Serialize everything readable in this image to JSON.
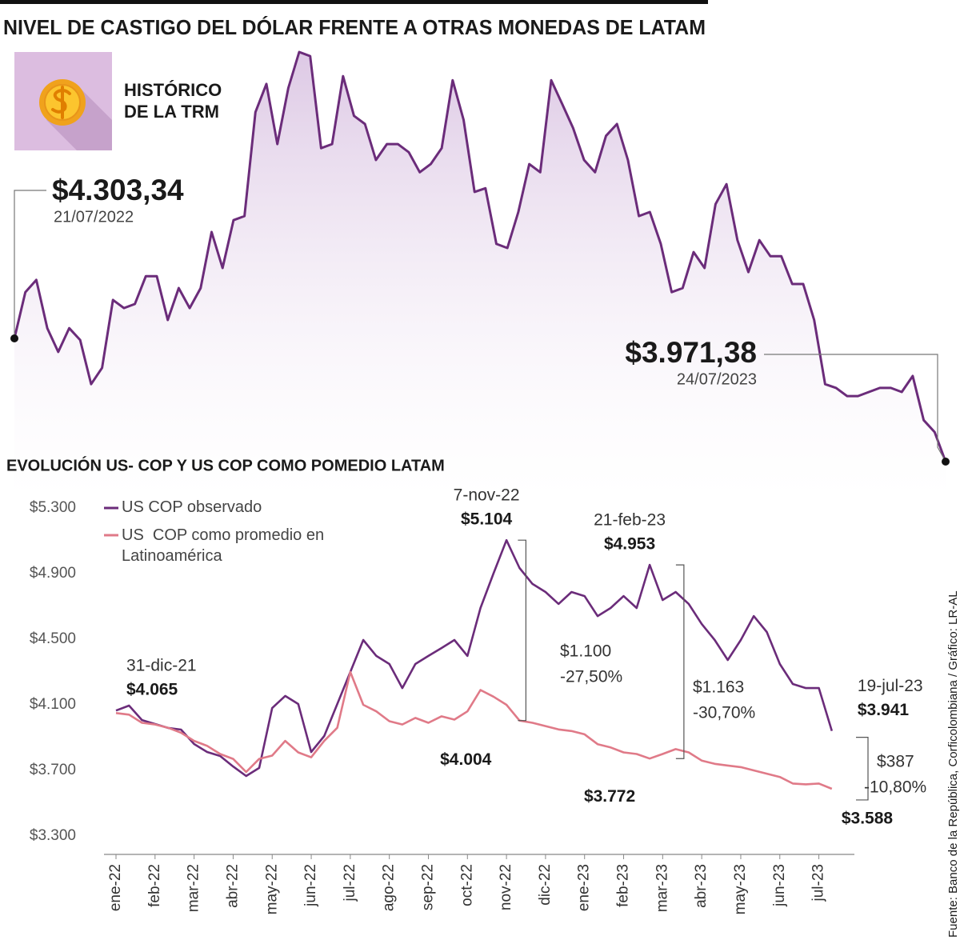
{
  "title": "NIVEL DE CASTIGO DEL DÓLAR FRENTE A OTRAS MONEDAS DE LATAM",
  "source": "Fuente: Banco de la República, Corficolombiana / Gráfico: LR-AL",
  "chart_data": [
    {
      "type": "line",
      "badge": [
        "HISTÓRICO",
        "DE LA TRM"
      ],
      "color": "#6b2c7a",
      "values": [
        4303.34,
        4428,
        4461,
        4331,
        4267,
        4331,
        4299,
        4180,
        4224,
        4407,
        4385,
        4396,
        4471,
        4471,
        4353,
        4439,
        4385,
        4439,
        4590,
        4493,
        4622,
        4633,
        4913,
        4989,
        4827,
        4978,
        5075,
        5064,
        4816,
        4827,
        5010,
        4903,
        4881,
        4784,
        4827,
        4827,
        4805,
        4751,
        4773,
        4816,
        4999,
        4892,
        4698,
        4708,
        4558,
        4547,
        4644,
        4773,
        4751,
        4999,
        4935,
        4870,
        4784,
        4751,
        4849,
        4881,
        4784,
        4633,
        4644,
        4558,
        4428,
        4439,
        4536,
        4493,
        4665,
        4719,
        4568,
        4482,
        4568,
        4525,
        4525,
        4450,
        4450,
        4353,
        4180,
        4170,
        4148,
        4148,
        4159,
        4170,
        4170,
        4159,
        4202,
        4083,
        4051,
        3971.38
      ],
      "start": {
        "label": "$4.303,34",
        "date": "21/07/2022"
      },
      "end": {
        "label": "$3.971,38",
        "date": "24/07/2023"
      }
    },
    {
      "type": "line",
      "title": "EVOLUCIÓN US- COP Y US COP COMO POMEDIO LATAM",
      "categories": [
        "ene-22",
        null,
        null,
        "feb-22",
        null,
        null,
        "mar-22",
        null,
        null,
        "abr-22",
        null,
        null,
        "may-22",
        null,
        null,
        "jun-22",
        null,
        null,
        "jul-22",
        null,
        null,
        "ago-22",
        null,
        null,
        "sep-22",
        null,
        null,
        "oct-22",
        null,
        null,
        "nov-22",
        null,
        null,
        "dic-22",
        null,
        null,
        "ene-23",
        null,
        null,
        "feb-23",
        null,
        null,
        "mar-23",
        null,
        null,
        "abr-23",
        null,
        null,
        "may-23",
        null,
        null,
        "jun-23",
        null,
        null,
        "jul-23",
        null
      ],
      "ylim": [
        3300,
        5300
      ],
      "yticks": [
        {
          "value": 3300,
          "label": "$3.300"
        },
        {
          "value": 3700,
          "label": "$3.700"
        },
        {
          "value": 4100,
          "label": "$4.100"
        },
        {
          "value": 4500,
          "label": "$4.500"
        },
        {
          "value": 4900,
          "label": "$4.900"
        },
        {
          "value": 5300,
          "label": "$5.300"
        }
      ],
      "series": [
        {
          "name": "US COP observado",
          "color": "#6b2c7a",
          "values": [
            4065,
            4095,
            4007,
            3983,
            3959,
            3949,
            3861,
            3812,
            3788,
            3724,
            3666,
            3715,
            4080,
            4154,
            4105,
            3812,
            3910,
            4105,
            4300,
            4495,
            4398,
            4349,
            4202,
            4349,
            4398,
            4446,
            4495,
            4398,
            4690,
            4900,
            5104,
            4934,
            4837,
            4788,
            4715,
            4788,
            4763,
            4641,
            4690,
            4763,
            4690,
            4953,
            4739,
            4788,
            4715,
            4593,
            4495,
            4373,
            4495,
            4641,
            4544,
            4349,
            4227,
            4202,
            4202,
            3941
          ],
          "value_labels": [
            "$4.065",
            null,
            null,
            null,
            null,
            null,
            null,
            null,
            null,
            null,
            null,
            null,
            null,
            null,
            null,
            null,
            null,
            null,
            null,
            null,
            null,
            null,
            null,
            null,
            null,
            null,
            null,
            null,
            null,
            null,
            "$5.104",
            null,
            null,
            null,
            null,
            null,
            null,
            null,
            null,
            null,
            null,
            "$4.953",
            null,
            null,
            null,
            null,
            null,
            null,
            null,
            null,
            null,
            null,
            null,
            null,
            null,
            "$3.941"
          ],
          "date_labels": [
            "31-dic-21",
            null,
            null,
            null,
            null,
            null,
            null,
            null,
            null,
            null,
            null,
            null,
            null,
            null,
            null,
            null,
            null,
            null,
            null,
            null,
            null,
            null,
            null,
            null,
            null,
            null,
            null,
            null,
            null,
            null,
            "7-nov-22",
            null,
            null,
            null,
            null,
            null,
            null,
            null,
            null,
            null,
            null,
            "21-feb-23",
            null,
            null,
            null,
            null,
            null,
            null,
            null,
            null,
            null,
            null,
            null,
            null,
            null,
            "19-jul-23"
          ]
        },
        {
          "name": "US  COP como promedio en Latinoamérica",
          "color": "#e07a88",
          "values": [
            4050,
            4040,
            3990,
            3980,
            3960,
            3930,
            3880,
            3850,
            3800,
            3770,
            3690,
            3770,
            3790,
            3880,
            3810,
            3780,
            3880,
            3960,
            4300,
            4100,
            4060,
            4000,
            3980,
            4020,
            3990,
            4030,
            4010,
            4060,
            4190,
            4150,
            4100,
            4004,
            3990,
            3970,
            3950,
            3940,
            3920,
            3860,
            3840,
            3810,
            3800,
            3772,
            3800,
            3830,
            3810,
            3760,
            3740,
            3730,
            3720,
            3700,
            3680,
            3660,
            3620,
            3615,
            3620,
            3588
          ],
          "value_labels": [
            null,
            null,
            null,
            null,
            null,
            null,
            null,
            null,
            null,
            null,
            null,
            null,
            null,
            null,
            null,
            null,
            null,
            null,
            null,
            null,
            null,
            null,
            null,
            null,
            null,
            null,
            null,
            null,
            null,
            null,
            null,
            "$4.004",
            null,
            null,
            null,
            null,
            null,
            null,
            null,
            null,
            null,
            "$3.772",
            null,
            null,
            null,
            null,
            null,
            null,
            null,
            null,
            null,
            null,
            null,
            null,
            null,
            "$3.588"
          ]
        }
      ],
      "differences": [
        {
          "amount": "$1.100",
          "percent": "-27,50%"
        },
        {
          "amount": "$1.163",
          "percent": "-30,70%"
        },
        {
          "amount": "$387",
          "percent": "-10,80%"
        }
      ]
    }
  ]
}
